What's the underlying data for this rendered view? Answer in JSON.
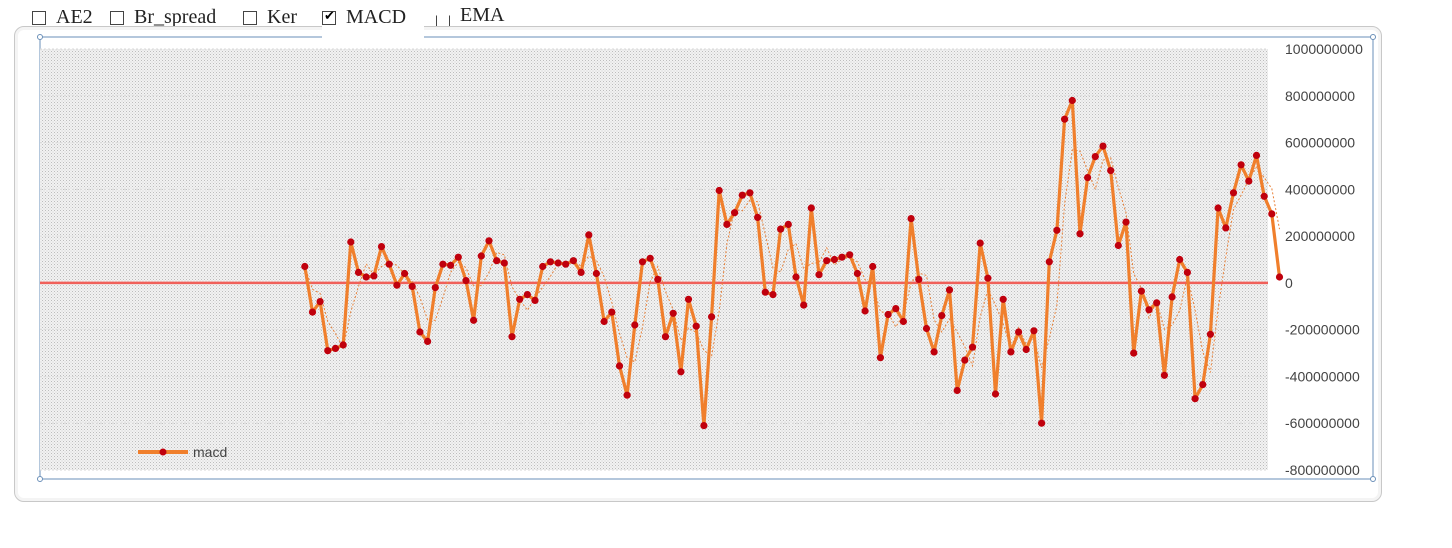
{
  "toolbar": {
    "items": [
      {
        "label": "AE2",
        "checked": false
      },
      {
        "label": "Br_spread",
        "checked": false
      },
      {
        "label": "Ker",
        "checked": false
      },
      {
        "label": "MACD",
        "checked": true
      },
      {
        "label": "EMA",
        "checked": false
      }
    ]
  },
  "colors": {
    "series": "#f07f2c",
    "marker": "#c0000d",
    "zero_line": "#f0605a",
    "trend": "#e8823a"
  },
  "chart_data": {
    "type": "line",
    "ylim": [
      -800000000,
      1000000000
    ],
    "yticks": [
      1000000000,
      800000000,
      600000000,
      400000000,
      200000000,
      0,
      -200000000,
      -400000000,
      -600000000,
      -800000000
    ],
    "ytick_labels": [
      "1000000000",
      "800000000",
      "600000000",
      "400000000",
      "200000000",
      "0",
      "-200000000",
      "-400000000",
      "-600000000",
      "-800000000"
    ],
    "grid": true,
    "legend_position": "bottom-left",
    "x_count": 160,
    "series": [
      {
        "name": "macd",
        "x_start": 34,
        "values": [
          70000000,
          -125000000,
          -80000000,
          -290000000,
          -280000000,
          -265000000,
          175000000,
          45000000,
          25000000,
          30000000,
          155000000,
          80000000,
          -10000000,
          40000000,
          -15000000,
          -210000000,
          -250000000,
          -20000000,
          80000000,
          75000000,
          110000000,
          10000000,
          -160000000,
          115000000,
          180000000,
          95000000,
          85000000,
          -230000000,
          -70000000,
          -50000000,
          -75000000,
          70000000,
          90000000,
          85000000,
          80000000,
          95000000,
          45000000,
          205000000,
          40000000,
          -165000000,
          -125000000,
          -355000000,
          -480000000,
          -180000000,
          90000000,
          105000000,
          15000000,
          -230000000,
          -130000000,
          -380000000,
          -70000000,
          -185000000,
          -610000000,
          -145000000,
          395000000,
          250000000,
          300000000,
          375000000,
          385000000,
          280000000,
          -40000000,
          -50000000,
          230000000,
          250000000,
          25000000,
          -95000000,
          320000000,
          35000000,
          95000000,
          100000000,
          110000000,
          120000000,
          40000000,
          -120000000,
          70000000,
          -320000000,
          -135000000,
          -110000000,
          -165000000,
          275000000,
          15000000,
          -195000000,
          -295000000,
          -140000000,
          -30000000,
          -460000000,
          -330000000,
          -275000000,
          170000000,
          20000000,
          -475000000,
          -70000000,
          -295000000,
          -210000000,
          -285000000,
          -205000000,
          -600000000,
          90000000,
          225000000,
          700000000,
          780000000,
          210000000,
          450000000,
          540000000,
          585000000,
          480000000,
          160000000,
          260000000,
          -300000000,
          -35000000,
          -115000000,
          -85000000,
          -395000000,
          -60000000,
          100000000,
          45000000,
          -495000000,
          -435000000,
          -220000000,
          320000000,
          235000000,
          385000000,
          505000000,
          435000000,
          545000000,
          370000000,
          295000000,
          25000000
        ]
      }
    ]
  }
}
